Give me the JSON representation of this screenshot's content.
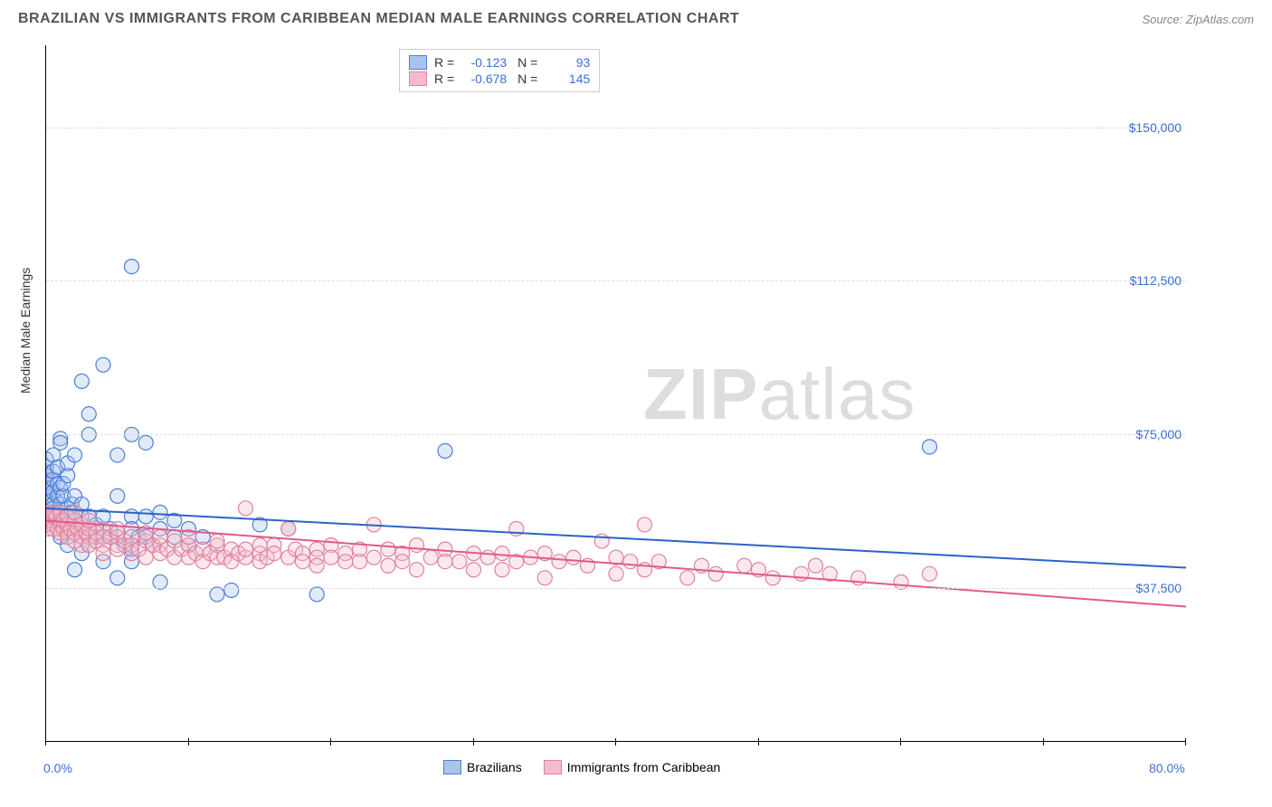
{
  "title": "BRAZILIAN VS IMMIGRANTS FROM CARIBBEAN MEDIAN MALE EARNINGS CORRELATION CHART",
  "source_label": "Source: ZipAtlas.com",
  "ylabel": "Median Male Earnings",
  "watermark_zip": "ZIP",
  "watermark_atlas": "atlas",
  "chart": {
    "type": "scatter",
    "xlim": [
      0,
      80
    ],
    "ylim": [
      0,
      170000
    ],
    "x_unit": "%",
    "y_unit": "$",
    "background_color": "#ffffff",
    "grid_color": "#dddddd",
    "axis_color": "#000000",
    "label_color": "#3a6fd8",
    "grid_y_values": [
      37500,
      75000,
      112500,
      150000
    ],
    "yticklabels": [
      "$37,500",
      "$75,000",
      "$112,500",
      "$150,000"
    ],
    "xticklabels": {
      "start": "0.0%",
      "end": "80.0%"
    },
    "xtick_positions": [
      0,
      10,
      20,
      30,
      40,
      50,
      60,
      70,
      80
    ],
    "series": [
      {
        "id": "brazilians",
        "label": "Brazilians",
        "fill": "#a9c4ec",
        "stroke": "#4b7fd6",
        "R": "-0.123",
        "N": "93",
        "trend": {
          "y_at_x0": 57000,
          "y_at_x80": 42500,
          "color": "#2b63c9"
        },
        "points": [
          [
            0,
            58000
          ],
          [
            0,
            62000
          ],
          [
            0,
            64000
          ],
          [
            0,
            66000
          ],
          [
            0,
            60000
          ],
          [
            0,
            65000
          ],
          [
            0,
            63000
          ],
          [
            0,
            67000
          ],
          [
            0,
            69000
          ],
          [
            0,
            61000
          ],
          [
            0.3,
            56000
          ],
          [
            0.3,
            59000
          ],
          [
            0.3,
            62000
          ],
          [
            0.5,
            55000
          ],
          [
            0.5,
            58000
          ],
          [
            0.5,
            61000
          ],
          [
            0.5,
            64000
          ],
          [
            0.5,
            66000
          ],
          [
            0.5,
            70000
          ],
          [
            0.5,
            57000
          ],
          [
            0.8,
            56000
          ],
          [
            0.8,
            60000
          ],
          [
            0.8,
            63000
          ],
          [
            0.8,
            67000
          ],
          [
            1,
            55000
          ],
          [
            1,
            58000
          ],
          [
            1,
            62000
          ],
          [
            1,
            74000
          ],
          [
            1,
            73000
          ],
          [
            1,
            50000
          ],
          [
            1.2,
            60000
          ],
          [
            1.2,
            63000
          ],
          [
            1.5,
            57000
          ],
          [
            1.5,
            55000
          ],
          [
            1.5,
            48000
          ],
          [
            1.5,
            52000
          ],
          [
            1.5,
            65000
          ],
          [
            1.5,
            68000
          ],
          [
            1.8,
            58000
          ],
          [
            1.8,
            56000
          ],
          [
            2,
            42000
          ],
          [
            2,
            54000
          ],
          [
            2,
            60000
          ],
          [
            2,
            70000
          ],
          [
            2.2,
            52000
          ],
          [
            2.5,
            88000
          ],
          [
            2.5,
            58000
          ],
          [
            2.5,
            55000
          ],
          [
            2.5,
            50000
          ],
          [
            2.5,
            46000
          ],
          [
            3,
            80000
          ],
          [
            3,
            75000
          ],
          [
            3,
            55000
          ],
          [
            3,
            52000
          ],
          [
            3,
            48000
          ],
          [
            3.5,
            50000
          ],
          [
            3.5,
            53000
          ],
          [
            4,
            92000
          ],
          [
            4,
            55000
          ],
          [
            4,
            50000
          ],
          [
            4,
            44000
          ],
          [
            4.5,
            52000
          ],
          [
            5,
            70000
          ],
          [
            5,
            60000
          ],
          [
            5,
            50000
          ],
          [
            5,
            40000
          ],
          [
            5.5,
            48000
          ],
          [
            6,
            116000
          ],
          [
            6,
            75000
          ],
          [
            6,
            55000
          ],
          [
            6,
            52000
          ],
          [
            6,
            47000
          ],
          [
            6,
            44000
          ],
          [
            6.5,
            50000
          ],
          [
            7,
            73000
          ],
          [
            7,
            55000
          ],
          [
            7,
            50000
          ],
          [
            7.5,
            48000
          ],
          [
            8,
            56000
          ],
          [
            8,
            52000
          ],
          [
            8,
            39000
          ],
          [
            9,
            54000
          ],
          [
            9,
            50000
          ],
          [
            10,
            52000
          ],
          [
            10,
            48000
          ],
          [
            11,
            50000
          ],
          [
            12,
            36000
          ],
          [
            13,
            37000
          ],
          [
            15,
            53000
          ],
          [
            17,
            52000
          ],
          [
            19,
            36000
          ],
          [
            28,
            71000
          ],
          [
            62,
            72000
          ]
        ]
      },
      {
        "id": "caribbean",
        "label": "Immigrants from Caribbean",
        "fill": "#f3bccc",
        "stroke": "#e082a0",
        "R": "-0.678",
        "N": "145",
        "trend": {
          "y_at_x0": 54000,
          "y_at_x80": 33000,
          "color": "#e05a8a"
        },
        "points": [
          [
            0,
            53000
          ],
          [
            0,
            55000
          ],
          [
            0,
            56000
          ],
          [
            0,
            54000
          ],
          [
            0.2,
            52000
          ],
          [
            0.2,
            55000
          ],
          [
            0.3,
            54000
          ],
          [
            0.5,
            53000
          ],
          [
            0.5,
            55000
          ],
          [
            0.5,
            52000
          ],
          [
            0.5,
            56000
          ],
          [
            0.7,
            55000
          ],
          [
            0.8,
            52000
          ],
          [
            1,
            54000
          ],
          [
            1,
            53000
          ],
          [
            1,
            56000
          ],
          [
            1,
            51000
          ],
          [
            1.2,
            52000
          ],
          [
            1.2,
            54000
          ],
          [
            1.5,
            53000
          ],
          [
            1.5,
            51000
          ],
          [
            1.5,
            55000
          ],
          [
            1.5,
            50000
          ],
          [
            1.7,
            52000
          ],
          [
            2,
            54000
          ],
          [
            2,
            51000
          ],
          [
            2,
            49000
          ],
          [
            2,
            56000
          ],
          [
            2.2,
            52000
          ],
          [
            2.5,
            50000
          ],
          [
            2.5,
            53000
          ],
          [
            2.5,
            48000
          ],
          [
            2.8,
            51000
          ],
          [
            3,
            50000
          ],
          [
            3,
            52000
          ],
          [
            3,
            48000
          ],
          [
            3,
            54000
          ],
          [
            3.5,
            51000
          ],
          [
            3.5,
            49000
          ],
          [
            4,
            52000
          ],
          [
            4,
            50000
          ],
          [
            4,
            48000
          ],
          [
            4,
            46000
          ],
          [
            4.5,
            50000
          ],
          [
            5,
            51000
          ],
          [
            5,
            48000
          ],
          [
            5,
            47000
          ],
          [
            5,
            52000
          ],
          [
            5.5,
            49000
          ],
          [
            6,
            50000
          ],
          [
            6,
            46000
          ],
          [
            6,
            48000
          ],
          [
            6.5,
            47000
          ],
          [
            7,
            49000
          ],
          [
            7,
            51000
          ],
          [
            7,
            45000
          ],
          [
            7.5,
            48000
          ],
          [
            8,
            48000
          ],
          [
            8,
            46000
          ],
          [
            8,
            50000
          ],
          [
            8.5,
            47000
          ],
          [
            9,
            49000
          ],
          [
            9,
            45000
          ],
          [
            9.5,
            47000
          ],
          [
            10,
            48000
          ],
          [
            10,
            45000
          ],
          [
            10,
            50000
          ],
          [
            10.5,
            46000
          ],
          [
            11,
            47000
          ],
          [
            11,
            44000
          ],
          [
            11.5,
            46000
          ],
          [
            12,
            48000
          ],
          [
            12,
            45000
          ],
          [
            12,
            49000
          ],
          [
            12.5,
            45000
          ],
          [
            13,
            47000
          ],
          [
            13,
            44000
          ],
          [
            13.5,
            46000
          ],
          [
            14,
            57000
          ],
          [
            14,
            45000
          ],
          [
            14,
            47000
          ],
          [
            15,
            46000
          ],
          [
            15,
            48000
          ],
          [
            15,
            44000
          ],
          [
            15.5,
            45000
          ],
          [
            16,
            48000
          ],
          [
            16,
            46000
          ],
          [
            17,
            52000
          ],
          [
            17,
            45000
          ],
          [
            17.5,
            47000
          ],
          [
            18,
            46000
          ],
          [
            18,
            44000
          ],
          [
            19,
            47000
          ],
          [
            19,
            45000
          ],
          [
            19,
            43000
          ],
          [
            20,
            48000
          ],
          [
            20,
            45000
          ],
          [
            21,
            46000
          ],
          [
            21,
            44000
          ],
          [
            22,
            47000
          ],
          [
            22,
            44000
          ],
          [
            23,
            53000
          ],
          [
            23,
            45000
          ],
          [
            24,
            47000
          ],
          [
            24,
            43000
          ],
          [
            25,
            46000
          ],
          [
            25,
            44000
          ],
          [
            26,
            48000
          ],
          [
            26,
            42000
          ],
          [
            27,
            45000
          ],
          [
            28,
            47000
          ],
          [
            28,
            44000
          ],
          [
            29,
            44000
          ],
          [
            30,
            46000
          ],
          [
            30,
            42000
          ],
          [
            31,
            45000
          ],
          [
            32,
            46000
          ],
          [
            32,
            42000
          ],
          [
            33,
            52000
          ],
          [
            33,
            44000
          ],
          [
            34,
            45000
          ],
          [
            35,
            46000
          ],
          [
            35,
            40000
          ],
          [
            36,
            44000
          ],
          [
            37,
            45000
          ],
          [
            38,
            43000
          ],
          [
            39,
            49000
          ],
          [
            40,
            45000
          ],
          [
            40,
            41000
          ],
          [
            41,
            44000
          ],
          [
            42,
            53000
          ],
          [
            42,
            42000
          ],
          [
            43,
            44000
          ],
          [
            45,
            40000
          ],
          [
            46,
            43000
          ],
          [
            47,
            41000
          ],
          [
            49,
            43000
          ],
          [
            50,
            42000
          ],
          [
            51,
            40000
          ],
          [
            53,
            41000
          ],
          [
            54,
            43000
          ],
          [
            55,
            41000
          ],
          [
            57,
            40000
          ],
          [
            60,
            39000
          ],
          [
            62,
            41000
          ]
        ]
      }
    ]
  }
}
